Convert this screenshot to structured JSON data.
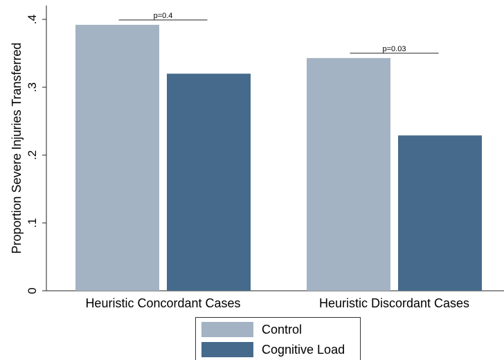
{
  "chart_data": {
    "type": "bar",
    "title": "",
    "xlabel": "",
    "ylabel": "Proportion Severe Injuries Transferred",
    "ylim": [
      0,
      0.4
    ],
    "yticks": [
      0,
      0.1,
      0.2,
      0.3,
      0.4
    ],
    "ytick_labels": [
      "0",
      ".1",
      ".2",
      ".3",
      ".4"
    ],
    "categories": [
      "Heuristic Concordant Cases",
      "Heuristic Discordant Cases"
    ],
    "series": [
      {
        "name": "Control",
        "values": [
          0.392,
          0.343
        ],
        "color": "#a3b3c3"
      },
      {
        "name": "Cognitive Load",
        "values": [
          0.32,
          0.229
        ],
        "color": "#466a8b"
      }
    ],
    "annotations": [
      {
        "category": 0,
        "text": "p=0.4"
      },
      {
        "category": 1,
        "text": "p=0.03"
      }
    ],
    "legend_position": "bottom",
    "grid": false
  }
}
